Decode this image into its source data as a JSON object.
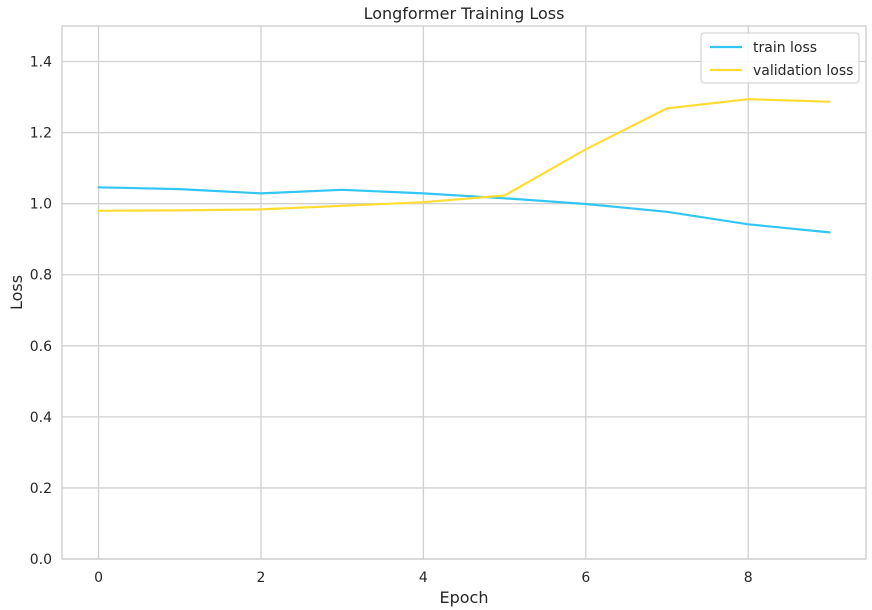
{
  "chart_data": {
    "type": "line",
    "title": "Longformer Training Loss",
    "xlabel": "Epoch",
    "ylabel": "Loss",
    "x": [
      0,
      1,
      2,
      3,
      4,
      5,
      6,
      7,
      8,
      9
    ],
    "xlim": [
      -0.45,
      9.45
    ],
    "ylim": [
      0.0,
      1.5
    ],
    "xticks": [
      0,
      2,
      4,
      6,
      8
    ],
    "yticks": [
      0.0,
      0.2,
      0.4,
      0.6,
      0.8,
      1.0,
      1.2,
      1.4
    ],
    "xtick_labels": [
      "0",
      "2",
      "4",
      "6",
      "8"
    ],
    "ytick_labels": [
      "0.0",
      "0.2",
      "0.4",
      "0.6",
      "0.8",
      "1.0",
      "1.2",
      "1.4"
    ],
    "grid": true,
    "legend_position": "top-right",
    "series": [
      {
        "name": "train loss",
        "color": "#33c6f5",
        "values": [
          1.046,
          1.041,
          1.029,
          1.039,
          1.029,
          1.015,
          0.999,
          0.977,
          0.942,
          0.919
        ]
      },
      {
        "name": "validation loss",
        "color": "#ffdd33",
        "values": [
          0.98,
          0.981,
          0.984,
          0.994,
          1.004,
          1.023,
          1.153,
          1.268,
          1.294,
          1.287
        ]
      }
    ]
  }
}
